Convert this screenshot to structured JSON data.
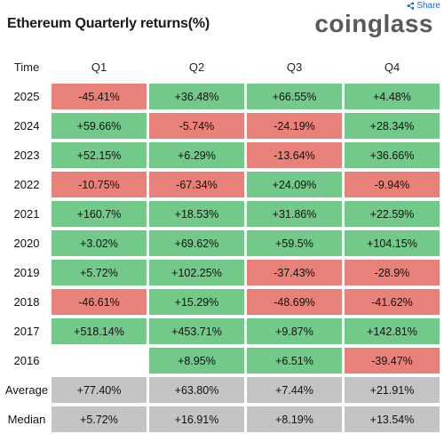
{
  "share": {
    "label": "Share",
    "icon": "share-icon"
  },
  "title": "Ethereum Quarterly returns(%)",
  "logo": "coinglass",
  "colors": {
    "positive": "#72c98a",
    "negative": "#e88179",
    "summary": "#c4c4c4"
  },
  "chart_data": {
    "type": "table",
    "title": "Ethereum Quarterly returns(%)",
    "header": [
      "Time",
      "Q1",
      "Q2",
      "Q3",
      "Q4"
    ],
    "rows": [
      {
        "label": "2025",
        "values": [
          "-45.41%",
          "+36.48%",
          "+66.55%",
          "+4.48%"
        ]
      },
      {
        "label": "2024",
        "values": [
          "+59.66%",
          "-5.74%",
          "-24.19%",
          "+28.34%"
        ]
      },
      {
        "label": "2023",
        "values": [
          "+52.15%",
          "+6.29%",
          "-13.64%",
          "+36.66%"
        ]
      },
      {
        "label": "2022",
        "values": [
          "-10.75%",
          "-67.34%",
          "+24.09%",
          "-9.94%"
        ]
      },
      {
        "label": "2021",
        "values": [
          "+160.7%",
          "+18.53%",
          "+31.86%",
          "+22.59%"
        ]
      },
      {
        "label": "2020",
        "values": [
          "+3.02%",
          "+69.62%",
          "+59.5%",
          "+104.15%"
        ]
      },
      {
        "label": "2019",
        "values": [
          "+5.72%",
          "+102.25%",
          "-37.43%",
          "-28.9%"
        ]
      },
      {
        "label": "2018",
        "values": [
          "-46.61%",
          "+15.29%",
          "-48.69%",
          "-41.62%"
        ]
      },
      {
        "label": "2017",
        "values": [
          "+518.14%",
          "+453.71%",
          "+9.87%",
          "+142.81%"
        ]
      },
      {
        "label": "2016",
        "values": [
          "",
          "+8.95%",
          "+6.51%",
          "-39.47%"
        ]
      }
    ],
    "summary": [
      {
        "label": "Average",
        "values": [
          "+77.40%",
          "+63.80%",
          "+7.44%",
          "+21.91%"
        ]
      },
      {
        "label": "Median",
        "values": [
          "+5.72%",
          "+16.91%",
          "+8.19%",
          "+13.54%"
        ]
      }
    ]
  }
}
